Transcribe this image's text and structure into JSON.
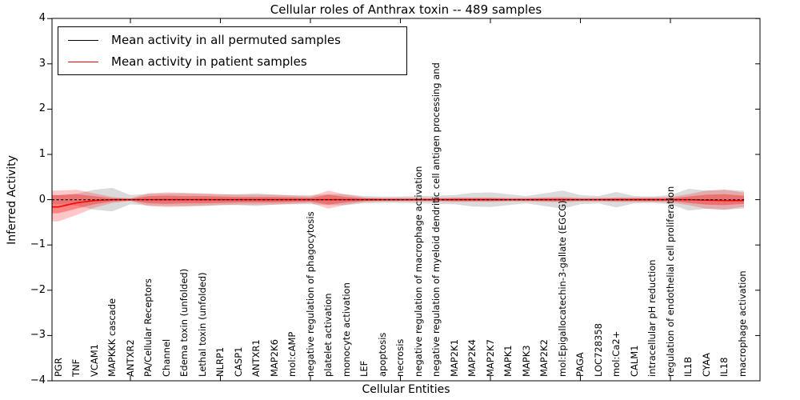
{
  "chart_data": {
    "type": "line",
    "title": "Cellular roles of Anthrax toxin -- 489 samples",
    "xlabel": "Cellular Entities",
    "ylabel": "Inferred Activity",
    "ylim": [
      -4,
      4
    ],
    "grid": false,
    "legend_position": "upper-left",
    "y_tick_labels": [
      "4",
      "3",
      "2",
      "1",
      "0",
      "−1",
      "−2",
      "−3",
      "−4"
    ],
    "y_tick_values": [
      4,
      3,
      2,
      1,
      0,
      -1,
      -2,
      -3,
      -4
    ],
    "x_major_tick_indices": [
      4,
      9,
      14,
      19,
      24,
      29,
      34
    ],
    "colors": {
      "permuted_line": "#000000",
      "patient_line": "#ff0000",
      "permuted_band": "#7f7f7f",
      "patient_band": "#ff0000"
    },
    "legend": [
      {
        "label": "Mean activity in all permuted samples",
        "color": "#000000"
      },
      {
        "label": "Mean activity in patient samples",
        "color": "#ff0000"
      }
    ],
    "entities": [
      "PGR",
      "TNF",
      "VCAM1",
      "MAPKKK cascade",
      "ANTXR2",
      "PA/Cellular Receptors",
      "Channel",
      "Edema toxin (unfolded)",
      "Lethal toxin (unfolded)",
      "NLRP1",
      "CASP1",
      "ANTXR1",
      "MAP2K6",
      "mol:cAMP",
      "negative regulation of phagocytosis",
      "platelet activation",
      "monocyte activation",
      "LEF",
      "apoptosis",
      "necrosis",
      "negative regulation of macrophage activation",
      "negative regulation of myeloid dendritic cell antigen processing and",
      "MAP2K1",
      "MAP2K4",
      "MAP2K7",
      "MAPK1",
      "MAPK3",
      "MAP2K2",
      "mol:Epigallocatechin-3-gallate (EGCG)",
      "PAGA",
      "LOC728358",
      "mol:Ca2+",
      "CALM1",
      "intracellular pH reduction",
      "regulation of endothelial cell proliferation",
      "IL1B",
      "CYAA",
      "IL18",
      "macrophage activation"
    ],
    "series": [
      {
        "name": "Mean activity in all permuted samples",
        "color": "#000000",
        "style": "dashed",
        "values": [
          0,
          0,
          0,
          0,
          0,
          0,
          0,
          0,
          0,
          0,
          0,
          0,
          0,
          0,
          0,
          0,
          0,
          0,
          0,
          0,
          0,
          0,
          0,
          0,
          0,
          0,
          0,
          0,
          0,
          0,
          0,
          0,
          0,
          0,
          0,
          0,
          0,
          0,
          0
        ]
      },
      {
        "name": "Mean activity in patient samples",
        "color": "#ff0000",
        "style": "solid",
        "values": [
          -0.16,
          -0.07,
          -0.02,
          0,
          0,
          0,
          0,
          0,
          0,
          0,
          0,
          0,
          0,
          0,
          0,
          0,
          0,
          0,
          0,
          0,
          0,
          0,
          0,
          0,
          0,
          0,
          0,
          0,
          0,
          0,
          0,
          0,
          0,
          0,
          0,
          0,
          -0.01,
          -0.02,
          -0.02
        ]
      }
    ],
    "bands": [
      {
        "name": "permuted-range",
        "color": "#7f7f7f",
        "opacity": 0.28,
        "upper": [
          0.1,
          0.13,
          0.22,
          0.26,
          0.1,
          0.13,
          0.14,
          0.14,
          0.13,
          0.12,
          0.12,
          0.14,
          0.11,
          0.1,
          0.1,
          0.12,
          0.12,
          0.08,
          0.07,
          0.07,
          0.08,
          0.09,
          0.1,
          0.15,
          0.16,
          0.12,
          0.08,
          0.14,
          0.2,
          0.1,
          0.08,
          0.17,
          0.08,
          0.07,
          0.1,
          0.24,
          0.2,
          0.22,
          0.2
        ],
        "lower": [
          -0.1,
          -0.13,
          -0.22,
          -0.26,
          -0.1,
          -0.13,
          -0.14,
          -0.14,
          -0.13,
          -0.12,
          -0.12,
          -0.14,
          -0.11,
          -0.1,
          -0.1,
          -0.12,
          -0.12,
          -0.08,
          -0.07,
          -0.07,
          -0.08,
          -0.09,
          -0.1,
          -0.15,
          -0.16,
          -0.12,
          -0.08,
          -0.14,
          -0.2,
          -0.1,
          -0.08,
          -0.17,
          -0.08,
          -0.07,
          -0.1,
          -0.24,
          -0.2,
          -0.22,
          -0.2
        ]
      },
      {
        "name": "patient-range-outer",
        "color": "#ff0000",
        "opacity": 0.22,
        "upper": [
          0.2,
          0.22,
          0.14,
          0.06,
          0.03,
          0.14,
          0.16,
          0.15,
          0.14,
          0.12,
          0.11,
          0.11,
          0.11,
          0.09,
          0.07,
          0.2,
          0.11,
          0.05,
          0.04,
          0.04,
          0.04,
          0.04,
          0.05,
          0.05,
          0.05,
          0.04,
          0.04,
          0.05,
          0.06,
          0.04,
          0.04,
          0.05,
          0.05,
          0.05,
          0.06,
          0.12,
          0.2,
          0.22,
          0.16
        ],
        "lower": [
          -0.48,
          -0.34,
          -0.18,
          -0.07,
          -0.03,
          -0.14,
          -0.16,
          -0.15,
          -0.14,
          -0.12,
          -0.11,
          -0.11,
          -0.11,
          -0.09,
          -0.07,
          -0.2,
          -0.11,
          -0.05,
          -0.04,
          -0.04,
          -0.04,
          -0.04,
          -0.05,
          -0.05,
          -0.05,
          -0.04,
          -0.04,
          -0.05,
          -0.06,
          -0.04,
          -0.04,
          -0.05,
          -0.05,
          -0.05,
          -0.06,
          -0.12,
          -0.2,
          -0.22,
          -0.16
        ]
      },
      {
        "name": "patient-range-inner",
        "color": "#ff0000",
        "opacity": 0.33,
        "upper": [
          0.1,
          0.12,
          0.08,
          0.03,
          0.02,
          0.08,
          0.09,
          0.08,
          0.08,
          0.07,
          0.06,
          0.06,
          0.06,
          0.05,
          0.04,
          0.11,
          0.06,
          0.03,
          0.02,
          0.02,
          0.02,
          0.02,
          0.03,
          0.03,
          0.03,
          0.02,
          0.02,
          0.03,
          0.03,
          0.02,
          0.02,
          0.03,
          0.03,
          0.03,
          0.03,
          0.07,
          0.11,
          0.12,
          0.09
        ],
        "lower": [
          -0.3,
          -0.2,
          -0.1,
          -0.04,
          -0.02,
          -0.08,
          -0.09,
          -0.08,
          -0.08,
          -0.07,
          -0.06,
          -0.06,
          -0.06,
          -0.05,
          -0.04,
          -0.11,
          -0.06,
          -0.03,
          -0.02,
          -0.02,
          -0.02,
          -0.02,
          -0.03,
          -0.03,
          -0.03,
          -0.02,
          -0.02,
          -0.03,
          -0.03,
          -0.02,
          -0.02,
          -0.03,
          -0.03,
          -0.03,
          -0.03,
          -0.07,
          -0.11,
          -0.12,
          -0.09
        ]
      }
    ]
  }
}
